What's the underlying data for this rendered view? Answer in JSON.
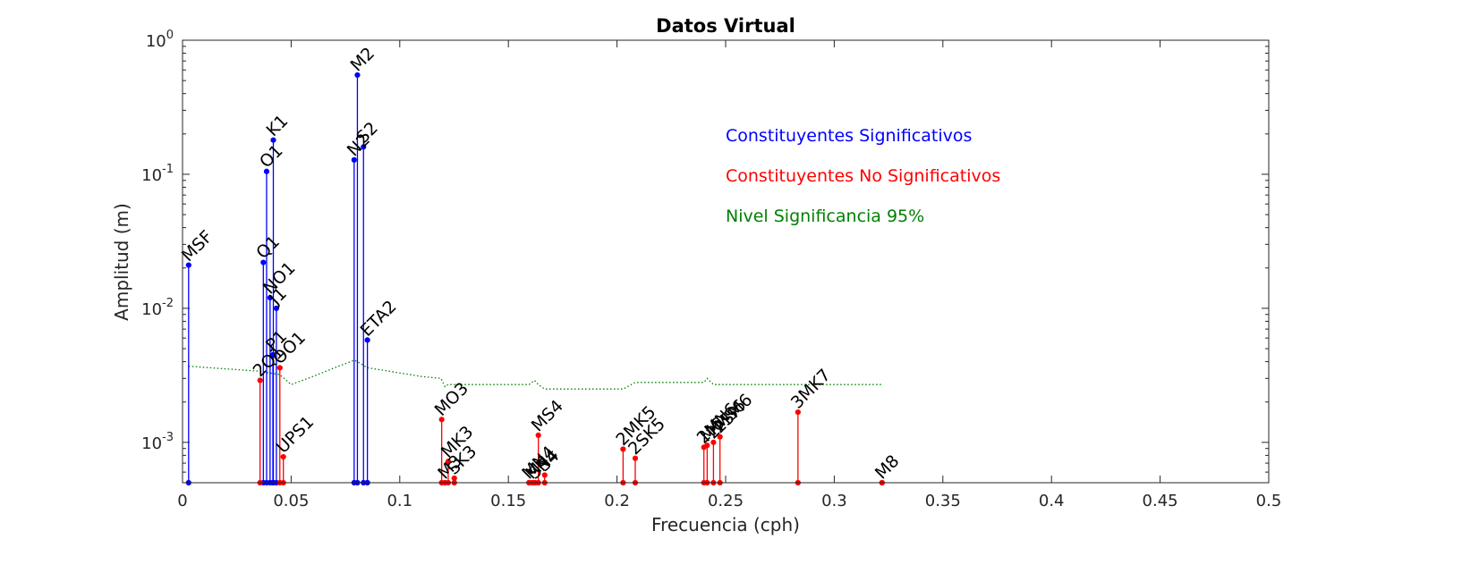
{
  "chart_data": {
    "type": "stem",
    "title": "Datos Virtual",
    "xlabel": "Frecuencia (cph)",
    "ylabel": "Amplitud (m)",
    "xlim": [
      0,
      0.5
    ],
    "ylim": [
      0.0005,
      1
    ],
    "yscale": "log",
    "grid": false,
    "xticks": [
      0,
      0.05,
      0.1,
      0.15,
      0.2,
      0.25,
      0.3,
      0.35,
      0.4,
      0.45,
      0.5
    ],
    "xtick_labels": [
      "0",
      "0.05",
      "0.1",
      "0.15",
      "0.2",
      "0.25",
      "0.3",
      "0.35",
      "0.4",
      "0.45",
      "0.5"
    ],
    "yticks": [
      0.001,
      0.01,
      0.1,
      1
    ],
    "ytick_labels": [
      {
        "base": "10",
        "exp": "-3"
      },
      {
        "base": "10",
        "exp": "-2"
      },
      {
        "base": "10",
        "exp": "-1"
      },
      {
        "base": "10",
        "exp": "0"
      }
    ],
    "colors": {
      "significant": "#0000ff",
      "not_significant": "#ff0000",
      "threshold": "#008000",
      "axis": "#262626"
    },
    "legend": [
      {
        "label": "Constituyentes Significativos",
        "color": "#0000ff"
      },
      {
        "label": "Constituyentes No Significativos",
        "color": "#ff0000"
      },
      {
        "label": "Nivel Significancia 95%",
        "color": "#008000"
      }
    ],
    "legend_placement": "upper-center-right",
    "significant": [
      {
        "name": "MSF",
        "x": 0.0028,
        "y": 0.021
      },
      {
        "name": "Q1",
        "x": 0.0372,
        "y": 0.022
      },
      {
        "name": "O1",
        "x": 0.0387,
        "y": 0.105
      },
      {
        "name": "NO1",
        "x": 0.0403,
        "y": 0.012
      },
      {
        "name": "P1",
        "x": 0.0416,
        "y": 0.0045
      },
      {
        "name": "K1",
        "x": 0.0418,
        "y": 0.18
      },
      {
        "name": "J1",
        "x": 0.0432,
        "y": 0.01
      },
      {
        "name": "N2",
        "x": 0.079,
        "y": 0.128
      },
      {
        "name": "M2",
        "x": 0.0805,
        "y": 0.55
      },
      {
        "name": "S2",
        "x": 0.0833,
        "y": 0.16
      },
      {
        "name": "ETA2",
        "x": 0.0851,
        "y": 0.0058
      }
    ],
    "not_significant": [
      {
        "name": "2Q1",
        "x": 0.0357,
        "y": 0.0029
      },
      {
        "name": "OO1",
        "x": 0.0448,
        "y": 0.0036
      },
      {
        "name": "UPS1",
        "x": 0.0464,
        "y": 0.00078
      },
      {
        "name": "MO3",
        "x": 0.1193,
        "y": 0.00148
      },
      {
        "name": "M3",
        "x": 0.1208,
        "y": 0.0005
      },
      {
        "name": "MK3",
        "x": 0.1223,
        "y": 0.00072
      },
      {
        "name": "SK3",
        "x": 0.1251,
        "y": 0.00054
      },
      {
        "name": "MN4",
        "x": 0.1595,
        "y": 0.0005
      },
      {
        "name": "M4",
        "x": 0.161,
        "y": 0.0005
      },
      {
        "name": "SN4",
        "x": 0.1623,
        "y": 0.0005
      },
      {
        "name": "MS4",
        "x": 0.1638,
        "y": 0.00113
      },
      {
        "name": "S4",
        "x": 0.1667,
        "y": 0.00057
      },
      {
        "name": "2MK5",
        "x": 0.2028,
        "y": 0.00089
      },
      {
        "name": "2SK5",
        "x": 0.2084,
        "y": 0.00076
      },
      {
        "name": "2MN6",
        "x": 0.24,
        "y": 0.00092
      },
      {
        "name": "M6",
        "x": 0.2415,
        "y": 0.00095
      },
      {
        "name": "2MS6",
        "x": 0.2444,
        "y": 0.001
      },
      {
        "name": "2SM6",
        "x": 0.2474,
        "y": 0.0011
      },
      {
        "name": "3MK7",
        "x": 0.2833,
        "y": 0.00168
      },
      {
        "name": "M8",
        "x": 0.322,
        "y": 0.0005
      }
    ],
    "threshold": {
      "x": [
        0.0028,
        0.035,
        0.0448,
        0.05,
        0.06,
        0.07,
        0.079,
        0.0805,
        0.0851,
        0.095,
        0.11,
        0.119,
        0.1208,
        0.1223,
        0.13,
        0.145,
        0.1595,
        0.162,
        0.1638,
        0.1667,
        0.18,
        0.2028,
        0.2084,
        0.225,
        0.24,
        0.2415,
        0.2444,
        0.26,
        0.2833,
        0.3,
        0.322
      ],
      "y": [
        0.0037,
        0.0034,
        0.0032,
        0.0027,
        0.0031,
        0.0036,
        0.0041,
        0.004,
        0.0036,
        0.0034,
        0.0031,
        0.003,
        0.0026,
        0.0027,
        0.0027,
        0.0027,
        0.0027,
        0.0029,
        0.0027,
        0.0025,
        0.0025,
        0.0025,
        0.0028,
        0.0028,
        0.0028,
        0.003,
        0.0027,
        0.0027,
        0.0027,
        0.0027,
        0.0027
      ]
    }
  }
}
